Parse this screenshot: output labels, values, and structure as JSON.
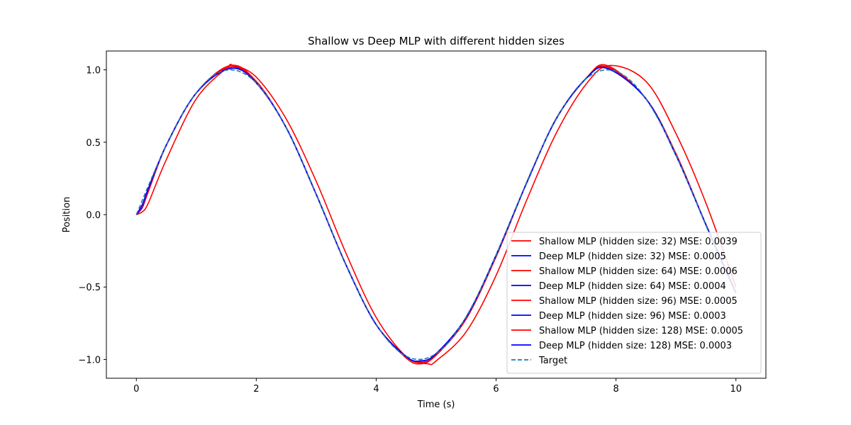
{
  "chart_data": {
    "type": "line",
    "title": "Shallow vs Deep MLP with different hidden sizes",
    "xlabel": "Time (s)",
    "ylabel": "Position",
    "xlim": [
      -0.5,
      10.5
    ],
    "ylim": [
      -1.13,
      1.13
    ],
    "xticks": [
      0,
      2,
      4,
      6,
      8,
      10
    ],
    "xtick_labels": [
      "0",
      "2",
      "4",
      "6",
      "8",
      "10"
    ],
    "yticks": [
      -1.0,
      -0.5,
      0.0,
      0.5,
      1.0
    ],
    "ytick_labels": [
      "−1.0",
      "−0.5",
      "0.0",
      "0.5",
      "1.0"
    ],
    "grid": false,
    "legend_position": "lower-right",
    "x_range": [
      0,
      10
    ],
    "series": [
      {
        "name": "Shallow MLP (hidden size: 32) MSE: 0.0039",
        "color": "#ff0000",
        "dash": "solid",
        "x": [
          0,
          0.1,
          0.2,
          0.5,
          1.0,
          1.5,
          1.62,
          2.0,
          2.5,
          3.0,
          3.5,
          4.0,
          4.5,
          4.86,
          5.0,
          5.5,
          6.0,
          6.5,
          7.0,
          7.5,
          7.9,
          8.5,
          9.0,
          9.5,
          10.0
        ],
        "y": [
          0.0,
          0.02,
          0.08,
          0.38,
          0.8,
          1.01,
          1.03,
          0.95,
          0.66,
          0.23,
          -0.27,
          -0.71,
          -0.98,
          -1.03,
          -1.01,
          -0.81,
          -0.42,
          0.09,
          0.56,
          0.9,
          1.03,
          0.92,
          0.56,
          0.08,
          -0.5
        ]
      },
      {
        "name": "Deep MLP (hidden size: 32) MSE: 0.0005",
        "color": "#0000ff",
        "dash": "solid",
        "x": [
          0,
          0.1,
          0.2,
          0.5,
          1.0,
          1.57,
          2.0,
          2.5,
          3.0,
          3.5,
          4.0,
          4.5,
          4.75,
          5.0,
          5.5,
          6.0,
          6.5,
          7.0,
          7.5,
          7.85,
          8.5,
          9.0,
          9.5,
          10.0
        ],
        "y": [
          0.0,
          0.05,
          0.16,
          0.48,
          0.84,
          1.02,
          0.91,
          0.6,
          0.14,
          -0.35,
          -0.76,
          -0.98,
          -1.02,
          -0.97,
          -0.72,
          -0.29,
          0.21,
          0.66,
          0.94,
          1.02,
          0.8,
          0.42,
          -0.07,
          -0.54
        ]
      },
      {
        "name": "Shallow MLP (hidden size: 64) MSE: 0.0006",
        "color": "#ff0000",
        "dash": "solid",
        "x": [
          0,
          0.1,
          0.2,
          0.5,
          1.0,
          1.57,
          2.0,
          2.5,
          3.0,
          3.5,
          4.0,
          4.5,
          4.75,
          5.0,
          5.5,
          6.0,
          6.5,
          7.0,
          7.5,
          7.85,
          8.5,
          9.0,
          9.5,
          10.0
        ],
        "y": [
          0.0,
          0.05,
          0.16,
          0.48,
          0.84,
          1.03,
          0.92,
          0.6,
          0.14,
          -0.35,
          -0.76,
          -0.99,
          -1.03,
          -0.97,
          -0.72,
          -0.29,
          0.21,
          0.66,
          0.94,
          1.03,
          0.8,
          0.42,
          -0.07,
          -0.54
        ]
      },
      {
        "name": "Deep MLP (hidden size: 64) MSE: 0.0004",
        "color": "#0000ff",
        "dash": "solid",
        "x": [
          0,
          0.1,
          0.2,
          0.5,
          1.0,
          1.57,
          2.0,
          2.5,
          3.0,
          3.5,
          4.0,
          4.5,
          4.75,
          5.0,
          5.5,
          6.0,
          6.5,
          7.0,
          7.5,
          7.85,
          8.5,
          9.0,
          9.5,
          10.0
        ],
        "y": [
          0.0,
          0.05,
          0.17,
          0.48,
          0.84,
          1.01,
          0.91,
          0.6,
          0.14,
          -0.35,
          -0.76,
          -0.98,
          -1.01,
          -0.96,
          -0.71,
          -0.28,
          0.21,
          0.66,
          0.94,
          1.01,
          0.8,
          0.41,
          -0.07,
          -0.54
        ]
      },
      {
        "name": "Shallow MLP (hidden size: 96) MSE: 0.0005",
        "color": "#ff0000",
        "dash": "solid",
        "x": [
          0,
          0.1,
          0.2,
          0.5,
          1.0,
          1.57,
          2.0,
          2.5,
          3.0,
          3.5,
          4.0,
          4.5,
          4.75,
          5.0,
          5.5,
          6.0,
          6.5,
          7.0,
          7.5,
          7.85,
          8.5,
          9.0,
          9.5,
          10.0
        ],
        "y": [
          0.0,
          0.06,
          0.18,
          0.48,
          0.84,
          1.02,
          0.91,
          0.6,
          0.14,
          -0.35,
          -0.76,
          -0.98,
          -1.02,
          -0.97,
          -0.72,
          -0.28,
          0.21,
          0.66,
          0.94,
          1.02,
          0.8,
          0.42,
          -0.07,
          -0.54
        ]
      },
      {
        "name": "Deep MLP (hidden size: 96) MSE: 0.0003",
        "color": "#0000ff",
        "dash": "solid",
        "x": [
          0,
          0.1,
          0.2,
          0.5,
          1.0,
          1.57,
          2.0,
          2.5,
          3.0,
          3.5,
          4.0,
          4.5,
          4.75,
          5.0,
          5.5,
          6.0,
          6.5,
          7.0,
          7.5,
          7.85,
          8.5,
          9.0,
          9.5,
          10.0
        ],
        "y": [
          0.0,
          0.07,
          0.18,
          0.48,
          0.84,
          1.01,
          0.91,
          0.6,
          0.14,
          -0.35,
          -0.76,
          -0.98,
          -1.01,
          -0.96,
          -0.71,
          -0.28,
          0.21,
          0.66,
          0.94,
          1.01,
          0.8,
          0.41,
          -0.07,
          -0.54
        ]
      },
      {
        "name": "Shallow MLP (hidden size: 128) MSE: 0.0005",
        "color": "#ff0000",
        "dash": "solid",
        "x": [
          0,
          0.1,
          0.2,
          0.5,
          1.0,
          1.57,
          2.0,
          2.5,
          3.0,
          3.5,
          4.0,
          4.5,
          4.75,
          5.0,
          5.5,
          6.0,
          6.5,
          7.0,
          7.5,
          7.85,
          8.5,
          9.0,
          9.5,
          10.0
        ],
        "y": [
          0.0,
          0.06,
          0.17,
          0.48,
          0.84,
          1.02,
          0.92,
          0.6,
          0.14,
          -0.35,
          -0.76,
          -0.98,
          -1.02,
          -0.97,
          -0.72,
          -0.29,
          0.21,
          0.66,
          0.94,
          1.02,
          0.8,
          0.42,
          -0.07,
          -0.54
        ]
      },
      {
        "name": "Deep MLP (hidden size: 128) MSE: 0.0003",
        "color": "#0000ff",
        "dash": "solid",
        "x": [
          0,
          0.1,
          0.2,
          0.5,
          1.0,
          1.57,
          2.0,
          2.5,
          3.0,
          3.5,
          4.0,
          4.5,
          4.75,
          5.0,
          5.5,
          6.0,
          6.5,
          7.0,
          7.5,
          7.85,
          8.5,
          9.0,
          9.5,
          10.0
        ],
        "y": [
          0.0,
          0.07,
          0.18,
          0.48,
          0.84,
          1.01,
          0.91,
          0.6,
          0.14,
          -0.35,
          -0.76,
          -0.98,
          -1.01,
          -0.96,
          -0.71,
          -0.28,
          0.21,
          0.66,
          0.94,
          1.01,
          0.8,
          0.41,
          -0.07,
          -0.54
        ]
      },
      {
        "name": "Target",
        "color": "#1f77b4",
        "dash": "dashed",
        "function": "sin",
        "x_start": 0,
        "x_end": 10
      }
    ]
  }
}
